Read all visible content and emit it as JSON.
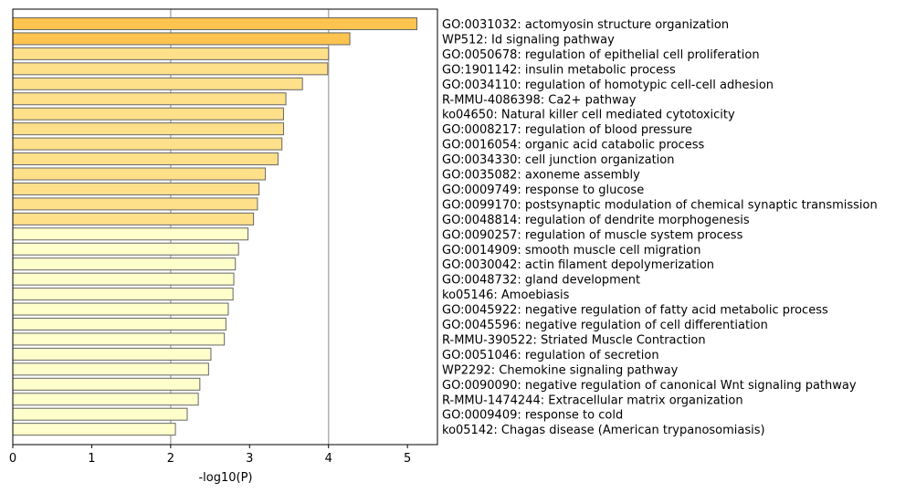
{
  "chart_data": {
    "type": "bar",
    "orientation": "horizontal",
    "xlabel": "-log10(P)",
    "xlim": [
      0,
      5.38
    ],
    "xticks": [
      0,
      1,
      2,
      3,
      4,
      5
    ],
    "gridlines_x": [
      2,
      4
    ],
    "terms": [
      {
        "label": "GO:0031032: actomyosin structure organization",
        "value": 5.12,
        "color": "#FFC44F"
      },
      {
        "label": "WP512: Id signaling pathway",
        "value": 4.27,
        "color": "#FFC44F"
      },
      {
        "label": "GO:0050678: regulation of epithelial cell proliferation",
        "value": 4.0,
        "color": "#FFE08A"
      },
      {
        "label": "GO:1901142: insulin metabolic process",
        "value": 3.99,
        "color": "#FFE08A"
      },
      {
        "label": "GO:0034110: regulation of homotypic cell-cell adhesion",
        "value": 3.67,
        "color": "#FFE08A"
      },
      {
        "label": "R-MMU-4086398: Ca2+ pathway",
        "value": 3.46,
        "color": "#FFE08A"
      },
      {
        "label": "ko04650: Natural killer cell mediated cytotoxicity",
        "value": 3.43,
        "color": "#FFE08A"
      },
      {
        "label": "GO:0008217: regulation of blood pressure",
        "value": 3.43,
        "color": "#FFE08A"
      },
      {
        "label": "GO:0016054: organic acid catabolic process",
        "value": 3.41,
        "color": "#FFE08A"
      },
      {
        "label": "GO:0034330: cell junction organization",
        "value": 3.36,
        "color": "#FFE08A"
      },
      {
        "label": "GO:0035082: axoneme assembly",
        "value": 3.2,
        "color": "#FFE08A"
      },
      {
        "label": "GO:0009749: response to glucose",
        "value": 3.12,
        "color": "#FFE08A"
      },
      {
        "label": "GO:0099170: postsynaptic modulation of chemical synaptic transmission",
        "value": 3.1,
        "color": "#FFE08A"
      },
      {
        "label": "GO:0048814: regulation of dendrite morphogenesis",
        "value": 3.05,
        "color": "#FFE08A"
      },
      {
        "label": "GO:0090257: regulation of muscle system process",
        "value": 2.98,
        "color": "#FFFFCC"
      },
      {
        "label": "GO:0014909: smooth muscle cell migration",
        "value": 2.86,
        "color": "#FFFFCC"
      },
      {
        "label": "GO:0030042: actin filament depolymerization",
        "value": 2.82,
        "color": "#FFFFCC"
      },
      {
        "label": "GO:0048732: gland development",
        "value": 2.8,
        "color": "#FFFFCC"
      },
      {
        "label": "ko05146: Amoebiasis",
        "value": 2.79,
        "color": "#FFFFCC"
      },
      {
        "label": "GO:0045922: negative regulation of fatty acid metabolic process",
        "value": 2.73,
        "color": "#FFFFCC"
      },
      {
        "label": "GO:0045596: negative regulation of cell differentiation",
        "value": 2.7,
        "color": "#FFFFCC"
      },
      {
        "label": "R-MMU-390522: Striated Muscle Contraction",
        "value": 2.68,
        "color": "#FFFFCC"
      },
      {
        "label": "GO:0051046: regulation of secretion",
        "value": 2.51,
        "color": "#FFFFCC"
      },
      {
        "label": "WP2292: Chemokine signaling pathway",
        "value": 2.48,
        "color": "#FFFFCC"
      },
      {
        "label": "GO:0090090: negative regulation of canonical Wnt signaling pathway",
        "value": 2.37,
        "color": "#FFFFCC"
      },
      {
        "label": "R-MMU-1474244: Extracellular matrix organization",
        "value": 2.35,
        "color": "#FFFFCC"
      },
      {
        "label": "GO:0009409: response to cold",
        "value": 2.21,
        "color": "#FFFFCC"
      },
      {
        "label": "ko05142: Chagas disease (American trypanosomiasis)",
        "value": 2.06,
        "color": "#FFFFCC"
      }
    ]
  }
}
